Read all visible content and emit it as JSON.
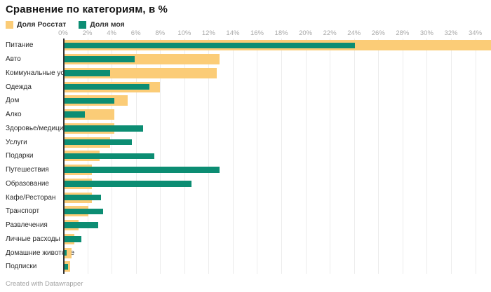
{
  "title": "Сравнение по категориям, в %",
  "footer": "Created with Datawrapper",
  "colors": {
    "rosstat": "#fbcc77",
    "moya": "#0c8d73",
    "gridline": "#ececec",
    "zero_axis": "#333333",
    "tick_text": "#a8a8a8",
    "label_text": "#2b2b2b"
  },
  "legend": {
    "items": [
      {
        "label": "Доля Росстат",
        "color": "#fbcc77"
      },
      {
        "label": "Доля моя",
        "color": "#0c8d73"
      }
    ]
  },
  "chart_data": {
    "type": "bar",
    "orientation": "horizontal",
    "title": "Сравнение по категориям, в %",
    "xlabel": "",
    "ylabel": "",
    "xlim": [
      0,
      35.3
    ],
    "x_ticks": [
      0,
      2,
      4,
      6,
      8,
      10,
      12,
      14,
      16,
      18,
      20,
      22,
      24,
      26,
      28,
      30,
      32,
      34
    ],
    "tick_suffix": "%",
    "grid": true,
    "legend_position": "top-left",
    "categories": [
      "Питание",
      "Авто",
      "Коммунальные услуги",
      "Одежда",
      "Дом",
      "Алко",
      "Здоровье/медицина",
      "Услуги",
      "Подарки",
      "Путешествия",
      "Образование",
      "Кафе/Ресторан",
      "Транспорт",
      "Развлечения",
      "Личные расходы",
      "Домашние животные",
      "Подписки"
    ],
    "series": [
      {
        "name": "Доля Росстат",
        "color": "#fbcc77",
        "values": [
          35.3,
          12.9,
          12.7,
          8.0,
          5.3,
          4.2,
          4.2,
          3.9,
          3.0,
          2.4,
          2.4,
          2.4,
          2.1,
          1.3,
          0.9,
          0.7,
          0.6
        ]
      },
      {
        "name": "Доля моя",
        "color": "#0c8d73",
        "values": [
          24.1,
          5.9,
          3.9,
          7.1,
          4.2,
          1.8,
          6.6,
          5.7,
          7.5,
          12.9,
          10.6,
          3.1,
          3.3,
          2.9,
          1.5,
          0.3,
          0.4
        ]
      }
    ]
  }
}
